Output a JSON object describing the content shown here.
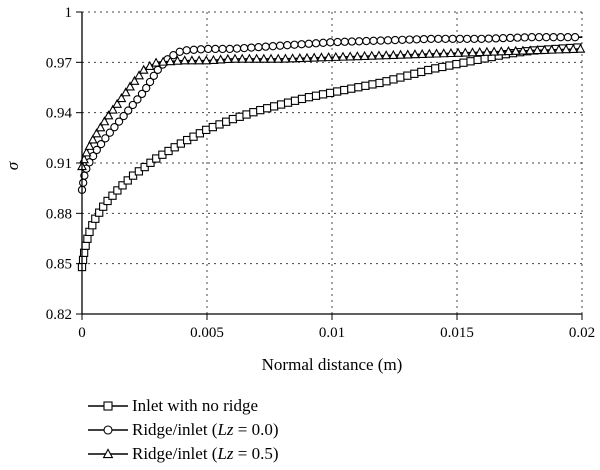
{
  "chart_data": {
    "type": "line",
    "title": "",
    "xlabel": "Normal distance (m)",
    "ylabel": "σ",
    "xlim": [
      0,
      0.02
    ],
    "ylim": [
      0.82,
      1
    ],
    "xticks": [
      "0",
      "0.005",
      "0.01",
      "0.015",
      "0.02"
    ],
    "yticks": [
      "0.82",
      "0.85",
      "0.88",
      "0.91",
      "0.94",
      "0.97",
      "1"
    ],
    "grid": "dotted",
    "legend_position": "bottom",
    "series": [
      {
        "name": "Inlet with no ridge",
        "legend_prefix": "Inlet with no ridge",
        "legend_var": "",
        "legend_suffix": "",
        "marker": "square",
        "x": [
          0,
          0.0001,
          0.0002,
          0.0003,
          0.0005,
          0.0008,
          0.001,
          0.0015,
          0.002,
          0.003,
          0.004,
          0.005,
          0.006,
          0.007,
          0.008,
          0.009,
          0.01,
          0.011,
          0.012,
          0.013,
          0.014,
          0.015,
          0.016,
          0.017,
          0.018,
          0.019,
          0.02
        ],
        "y": [
          0.848,
          0.858,
          0.864,
          0.869,
          0.876,
          0.883,
          0.887,
          0.895,
          0.902,
          0.913,
          0.922,
          0.93,
          0.936,
          0.941,
          0.945,
          0.949,
          0.952,
          0.955,
          0.958,
          0.962,
          0.966,
          0.969,
          0.972,
          0.975,
          0.977,
          0.978,
          0.979
        ]
      },
      {
        "name": "Ridge/inlet (Lz = 0.0)",
        "legend_prefix": "Ridge/inlet (",
        "legend_var": "Lz",
        "legend_suffix": " = 0.0)",
        "marker": "circle",
        "x": [
          0,
          0.0001,
          0.0002,
          0.0004,
          0.0006,
          0.001,
          0.0015,
          0.002,
          0.0025,
          0.003,
          0.0035,
          0.004,
          0.005,
          0.006,
          0.007,
          0.008,
          0.009,
          0.01,
          0.012,
          0.014,
          0.016,
          0.018,
          0.02
        ],
        "y": [
          0.894,
          0.903,
          0.908,
          0.913,
          0.918,
          0.926,
          0.935,
          0.944,
          0.953,
          0.965,
          0.973,
          0.977,
          0.978,
          0.978,
          0.979,
          0.98,
          0.981,
          0.982,
          0.983,
          0.984,
          0.984,
          0.985,
          0.985
        ]
      },
      {
        "name": "Ridge/inlet (Lz = 0.5)",
        "legend_prefix": "Ridge/inlet (",
        "legend_var": "Lz",
        "legend_suffix": " = 0.5)",
        "marker": "triangle",
        "x": [
          0,
          0.0001,
          0.0002,
          0.0004,
          0.0006,
          0.001,
          0.0015,
          0.002,
          0.0025,
          0.003,
          0.004,
          0.005,
          0.006,
          0.008,
          0.01,
          0.012,
          0.014,
          0.016,
          0.018,
          0.02
        ],
        "y": [
          0.908,
          0.913,
          0.917,
          0.923,
          0.928,
          0.937,
          0.947,
          0.957,
          0.966,
          0.97,
          0.971,
          0.971,
          0.972,
          0.972,
          0.973,
          0.974,
          0.975,
          0.976,
          0.977,
          0.978
        ]
      }
    ]
  }
}
